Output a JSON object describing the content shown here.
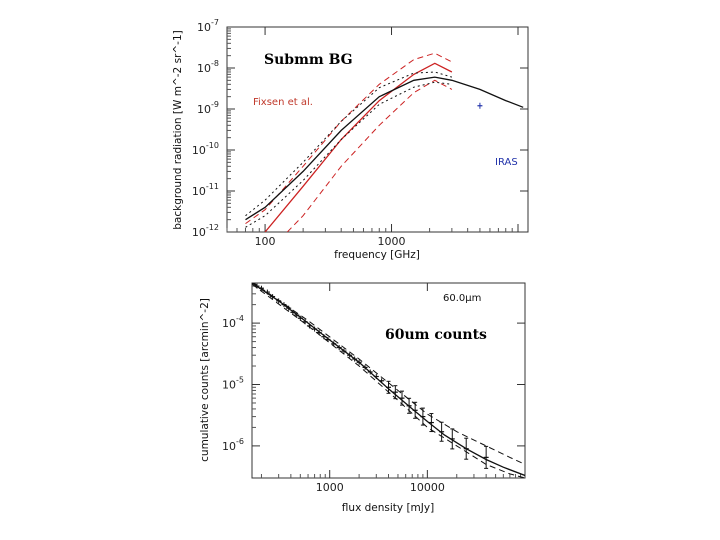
{
  "chart_data": [
    {
      "type": "line",
      "title": "Submm BG",
      "xlabel": "frequency [GHz]",
      "ylabel": "background radiation [W m^-2 sr^-1]",
      "x_tick_labels": [
        "100",
        "1000"
      ],
      "y_ticks": [
        {
          "base": "10",
          "exp": "-7",
          "value": 1e-07
        },
        {
          "base": "10",
          "exp": "-8",
          "value": 1e-08
        },
        {
          "base": "10",
          "exp": "-9",
          "value": 1e-09
        },
        {
          "base": "10",
          "exp": "-10",
          "value": 1e-10
        },
        {
          "base": "10",
          "exp": "-11",
          "value": 1e-11
        },
        {
          "base": "10",
          "exp": "-12",
          "value": 1e-12
        }
      ],
      "xlim": [
        50,
        12000
      ],
      "ylim": [
        1e-12,
        1e-07
      ],
      "legend": [
        {
          "label": "Fixsen et al.",
          "color": "#c0392b"
        },
        {
          "label": "IRAS",
          "color": "#2233aa"
        }
      ],
      "series": [
        {
          "name": "Fixsen et al. upper",
          "color": "#cc2222",
          "style": "dashed",
          "x": [
            70,
            100,
            200,
            400,
            800,
            1500,
            2200,
            3000
          ],
          "y": [
            1.6e-12,
            3.5e-12,
            4e-11,
            5e-10,
            4e-09,
            1.6e-08,
            2.3e-08,
            1.4e-08
          ]
        },
        {
          "name": "Fixsen et al.",
          "color": "#cc2222",
          "style": "solid",
          "x": [
            100,
            200,
            400,
            800,
            1500,
            2200,
            3000
          ],
          "y": [
            1e-12,
            1.3e-11,
            1.8e-10,
            1.6e-09,
            7e-09,
            1.3e-08,
            8e-09
          ]
        },
        {
          "name": "Fixsen et al. lower",
          "color": "#cc2222",
          "style": "dashed",
          "x": [
            150,
            200,
            400,
            800,
            1500,
            2200,
            3000
          ],
          "y": [
            1e-12,
            2.5e-12,
            4e-11,
            4e-10,
            2.5e-09,
            5e-09,
            3e-09
          ]
        },
        {
          "name": "Model background",
          "color": "#111111",
          "style": "solid",
          "x": [
            70,
            100,
            200,
            400,
            800,
            1500,
            2200,
            3000,
            5000,
            8000,
            11000
          ],
          "y": [
            2e-12,
            4e-12,
            3e-11,
            3e-10,
            2e-09,
            5e-09,
            6e-09,
            5e-09,
            3e-09,
            1.6e-09,
            1.1e-09
          ]
        },
        {
          "name": "Model upper",
          "color": "#111111",
          "style": "dotted",
          "x": [
            70,
            100,
            200,
            400,
            800,
            1500,
            2200,
            3000
          ],
          "y": [
            2.5e-12,
            6e-12,
            5e-11,
            5e-10,
            3.3e-09,
            7.5e-09,
            8e-09,
            6e-09
          ]
        },
        {
          "name": "Model lower",
          "color": "#111111",
          "style": "dotted",
          "x": [
            70,
            100,
            200,
            400,
            800,
            1500,
            2200,
            3000
          ],
          "y": [
            1.3e-12,
            2.5e-12,
            1.8e-11,
            1.8e-10,
            1.3e-09,
            3.4e-09,
            4.5e-09,
            4e-09
          ]
        }
      ],
      "iras_points": [
        {
          "x": 5000,
          "y": 1.2e-09
        }
      ]
    },
    {
      "type": "line",
      "title": "60um counts",
      "panel_label": "60.0μm",
      "xlabel": "flux density [mJy]",
      "ylabel": "cumulative counts [arcmin^-2]",
      "x_tick_labels": [
        "1000",
        "10000"
      ],
      "y_ticks": [
        {
          "base": "10",
          "exp": "-4",
          "value": 0.0001
        },
        {
          "base": "10",
          "exp": "-5",
          "value": 1e-05
        },
        {
          "base": "10",
          "exp": "-6",
          "value": 1e-06
        }
      ],
      "xlim": [
        160,
        100000
      ],
      "ylim": [
        3e-07,
        0.00045
      ],
      "series": [
        {
          "name": "Model",
          "color": "#111111",
          "style": "solid",
          "x": [
            160,
            300,
            600,
            1000,
            2000,
            4000,
            7000,
            10000,
            15000,
            25000,
            40000,
            60000,
            100000
          ],
          "y": [
            0.00045,
            0.00023,
            0.0001,
            5.3e-05,
            2.3e-05,
            8.5e-06,
            4e-06,
            2.5e-06,
            1.5e-06,
            9e-07,
            6e-07,
            4.5e-07,
            3.3e-07
          ]
        },
        {
          "name": "Model upper",
          "color": "#111111",
          "style": "dashed",
          "x": [
            160,
            600,
            2000,
            5000,
            10000,
            20000,
            40000,
            70000,
            100000
          ],
          "y": [
            0.00047,
            0.00011,
            2.6e-05,
            8e-06,
            3.3e-06,
            1.7e-06,
            1e-06,
            6.5e-07,
            5e-07
          ]
        },
        {
          "name": "Model lower",
          "color": "#111111",
          "style": "dashed",
          "x": [
            160,
            600,
            2000,
            5000,
            10000,
            20000,
            40000,
            70000,
            100000
          ],
          "y": [
            0.00043,
            9e-05,
            2e-05,
            5.5e-06,
            2e-06,
            1e-06,
            5e-07,
            3.5e-07,
            3e-07
          ]
        }
      ],
      "points": [
        {
          "x": 180,
          "y": 0.0004
        },
        {
          "x": 200,
          "y": 0.00037
        },
        {
          "x": 230,
          "y": 0.00032
        },
        {
          "x": 260,
          "y": 0.00027
        },
        {
          "x": 300,
          "y": 0.00023
        },
        {
          "x": 340,
          "y": 0.0002
        },
        {
          "x": 380,
          "y": 0.000175
        },
        {
          "x": 420,
          "y": 0.00015
        },
        {
          "x": 460,
          "y": 0.000135
        },
        {
          "x": 500,
          "y": 0.00012
        },
        {
          "x": 560,
          "y": 0.000105
        },
        {
          "x": 620,
          "y": 9e-05
        },
        {
          "x": 700,
          "y": 8e-05
        },
        {
          "x": 780,
          "y": 7e-05
        },
        {
          "x": 870,
          "y": 6e-05
        },
        {
          "x": 960,
          "y": 5.4e-05
        },
        {
          "x": 1100,
          "y": 4.6e-05
        },
        {
          "x": 1250,
          "y": 4e-05
        },
        {
          "x": 1400,
          "y": 3.5e-05
        },
        {
          "x": 1600,
          "y": 3e-05
        },
        {
          "x": 1800,
          "y": 2.6e-05
        },
        {
          "x": 2000,
          "y": 2.3e-05
        },
        {
          "x": 2300,
          "y": 1.9e-05
        },
        {
          "x": 2600,
          "y": 1.6e-05
        },
        {
          "x": 3000,
          "y": 1.35e-05
        },
        {
          "x": 3400,
          "y": 1.15e-05
        },
        {
          "x": 4000,
          "y": 9e-06
        },
        {
          "x": 4700,
          "y": 7.5e-06
        },
        {
          "x": 5500,
          "y": 6e-06
        },
        {
          "x": 6500,
          "y": 4.5e-06
        },
        {
          "x": 7500,
          "y": 3.8e-06
        },
        {
          "x": 9000,
          "y": 3e-06
        },
        {
          "x": 11000,
          "y": 2.4e-06
        },
        {
          "x": 14000,
          "y": 1.7e-06
        },
        {
          "x": 18000,
          "y": 1.3e-06
        },
        {
          "x": 25000,
          "y": 9e-07
        },
        {
          "x": 40000,
          "y": 6.5e-07
        }
      ]
    }
  ]
}
